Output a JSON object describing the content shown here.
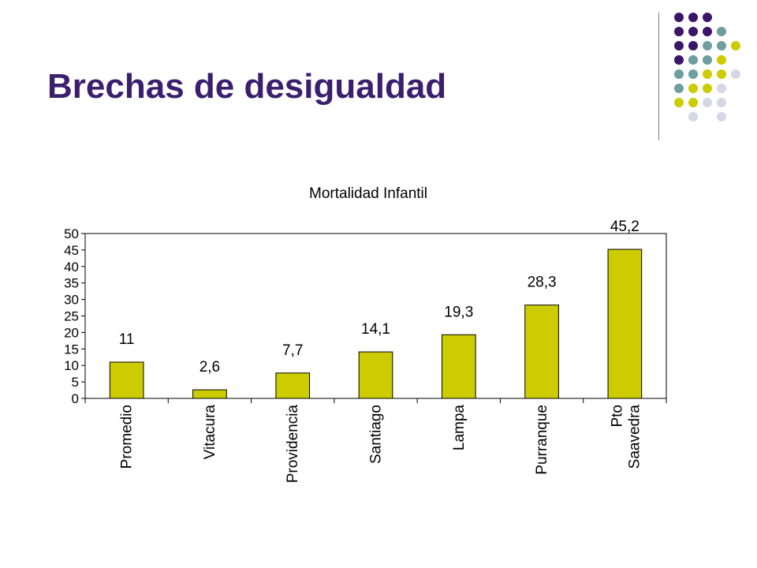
{
  "slide": {
    "title": "Brechas de desigualdad"
  },
  "decoration": {
    "icon": "dot-grid-icon",
    "colors": {
      "purple": "#3b1568",
      "teal": "#6f9e9e",
      "yellow": "#cccc00",
      "lavender": "#d6d6e6"
    },
    "grid": [
      [
        "",
        "purple",
        "purple",
        "purple",
        ""
      ],
      [
        "",
        "purple",
        "purple",
        "purple",
        "teal"
      ],
      [
        "",
        "purple",
        "purple",
        "teal",
        "teal",
        "yellow"
      ],
      [
        "",
        "purple",
        "teal",
        "teal",
        "yellow"
      ],
      [
        "",
        "teal",
        "teal",
        "yellow",
        "yellow",
        "lavender"
      ],
      [
        "",
        "teal",
        "yellow",
        "yellow",
        "lavender"
      ],
      [
        "",
        "yellow",
        "yellow",
        "lavender",
        "lavender"
      ],
      [
        "",
        "",
        "lavender",
        "",
        "lavender"
      ]
    ]
  },
  "chart_data": {
    "type": "bar",
    "title": "Mortalidad Infantil",
    "xlabel": "",
    "ylabel": "",
    "categories": [
      "Promedio",
      "Vitacura",
      "Providencia",
      "Santiago",
      "Lampa",
      "Purranque",
      "Pto Saavedra"
    ],
    "category_lines": [
      [
        "Promedio"
      ],
      [
        "Vitacura"
      ],
      [
        "Providencia"
      ],
      [
        "Santiago"
      ],
      [
        "Lampa"
      ],
      [
        "Purranque"
      ],
      [
        "Pto",
        "Saavedra"
      ]
    ],
    "values": [
      11,
      2.6,
      7.7,
      14.1,
      19.3,
      28.3,
      45.2
    ],
    "value_labels": [
      "11",
      "2,6",
      "7,7",
      "14,1",
      "19,3",
      "28,3",
      "45,2"
    ],
    "ylim": [
      0,
      50
    ],
    "yticks": [
      0,
      5,
      10,
      15,
      20,
      25,
      30,
      35,
      40,
      45,
      50
    ],
    "grid": false,
    "legend": "none",
    "bar_color": "#cccc00"
  }
}
